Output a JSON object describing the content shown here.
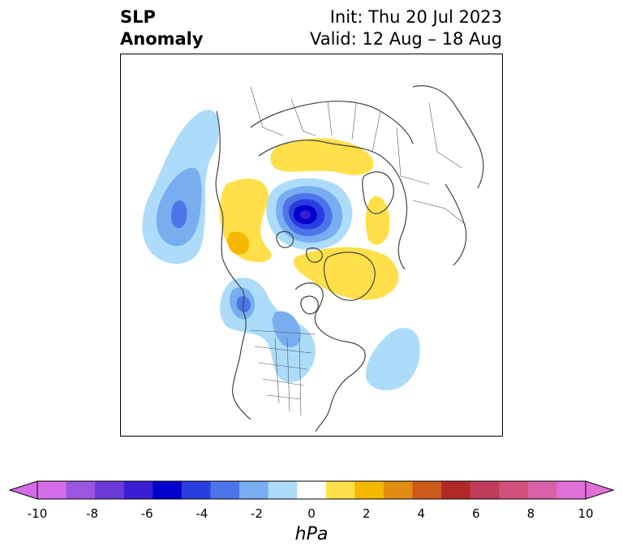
{
  "title": {
    "left_line1": "SLP",
    "left_line2": "Anomaly",
    "right_line1": "Init: Thu 20 Jul 2023",
    "right_line2": "Valid: 12 Aug – 18 Aug"
  },
  "colorbar": {
    "units": "hPa",
    "levels": [
      -10,
      -9,
      -8,
      -7,
      -6,
      -5,
      -4,
      -3,
      -2,
      -1,
      1,
      2,
      3,
      4,
      5,
      6,
      7,
      8,
      9,
      10
    ],
    "tick_labels": [
      "-10",
      "-8",
      "-6",
      "-4",
      "-2",
      "0",
      "2",
      "4",
      "6",
      "8",
      "10"
    ],
    "colors": [
      "#d46be8",
      "#9b55e0",
      "#6b3ad8",
      "#3a1ed4",
      "#0000cc",
      "#2a3ee0",
      "#4d74e8",
      "#78aef0",
      "#acdcfa",
      "#ffffff",
      "#ffe04a",
      "#f5b800",
      "#e08c10",
      "#cc5a1a",
      "#b02828",
      "#c03c5a",
      "#d0507a",
      "#d860a8",
      "#e070d8"
    ],
    "extend": "both"
  },
  "map": {
    "projection": "north-polar-stereographic",
    "field": "sea level pressure anomaly",
    "features": [
      {
        "name": "arctic-low",
        "sign": "negative",
        "peak_hpa": -8
      },
      {
        "name": "ne-pacific-low",
        "sign": "negative",
        "peak_hpa": -4
      },
      {
        "name": "western-north-america-low",
        "sign": "negative",
        "peak_hpa": -3
      },
      {
        "name": "hudson-bay-low",
        "sign": "negative",
        "peak_hpa": -2
      },
      {
        "name": "north-atlantic-low",
        "sign": "negative",
        "peak_hpa": -2
      },
      {
        "name": "eurasia-high",
        "sign": "positive",
        "peak_hpa": 2
      },
      {
        "name": "greenland-high",
        "sign": "positive",
        "peak_hpa": 1
      },
      {
        "name": "siberia-high",
        "sign": "positive",
        "peak_hpa": 2
      }
    ]
  }
}
